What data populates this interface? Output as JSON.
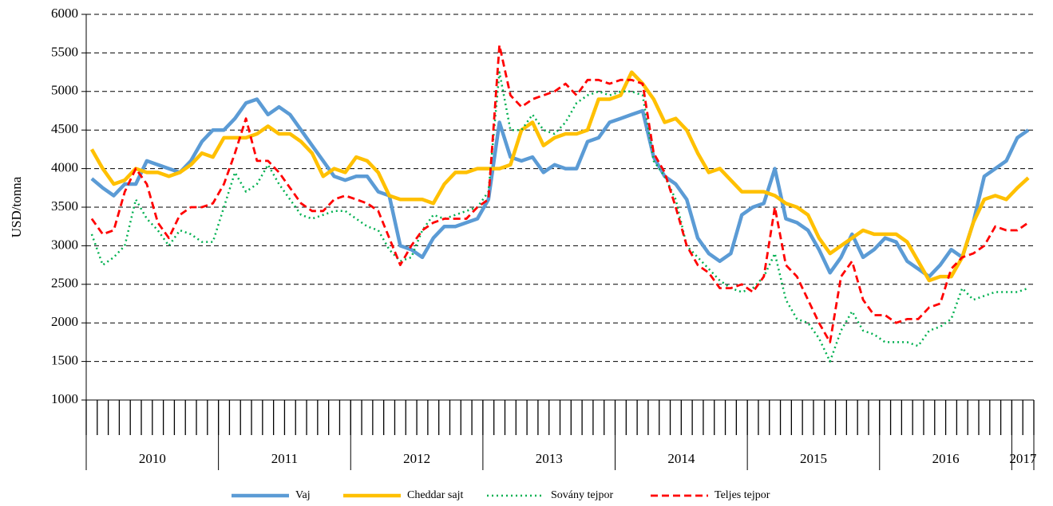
{
  "chart_data": {
    "type": "line",
    "y_label": "USD/tonna",
    "categories": [
      "2010",
      null,
      null,
      null,
      null,
      null,
      null,
      null,
      null,
      null,
      null,
      null,
      "2011",
      null,
      null,
      null,
      null,
      null,
      null,
      null,
      null,
      null,
      null,
      null,
      "2012",
      null,
      null,
      null,
      null,
      null,
      null,
      null,
      null,
      null,
      null,
      null,
      "2013",
      null,
      null,
      null,
      null,
      null,
      null,
      null,
      null,
      null,
      null,
      null,
      "2014",
      null,
      null,
      null,
      null,
      null,
      null,
      null,
      null,
      null,
      null,
      null,
      "2015",
      null,
      null,
      null,
      null,
      null,
      null,
      null,
      null,
      null,
      null,
      null,
      "2016",
      null,
      null,
      null,
      null,
      null,
      null,
      null,
      null,
      null,
      null,
      null,
      "2017",
      null
    ],
    "ylim": [
      1000,
      6000
    ],
    "yticks": [
      1000,
      1500,
      2000,
      2500,
      3000,
      3500,
      4000,
      4500,
      5000,
      5500,
      6000
    ],
    "grid": true,
    "legend": "bottom",
    "series": [
      {
        "name": "Vaj",
        "color": "#5b9bd5",
        "style": "solid",
        "values": [
          3870,
          3750,
          3650,
          3800,
          3800,
          4100,
          4050,
          4000,
          3950,
          4100,
          4350,
          4500,
          4500,
          4650,
          4850,
          4900,
          4700,
          4800,
          4700,
          4500,
          4300,
          4100,
          3900,
          3850,
          3900,
          3900,
          3700,
          3650,
          3000,
          2950,
          2850,
          3100,
          3250,
          3250,
          3300,
          3350,
          3600,
          4600,
          4150,
          4100,
          4150,
          3950,
          4050,
          4000,
          4000,
          4350,
          4400,
          4600,
          4650,
          4700,
          4750,
          4150,
          3900,
          3800,
          3600,
          3100,
          2900,
          2800,
          2900,
          3400,
          3500,
          3550,
          4000,
          3350,
          3300,
          3200,
          2950,
          2650,
          2850,
          3150,
          2850,
          2950,
          3100,
          3050,
          2800,
          2700,
          2600,
          2750,
          2950,
          2850,
          3300,
          3900,
          4000,
          4100,
          4400,
          4500
        ]
      },
      {
        "name": "Cheddar sajt",
        "color": "#ffc000",
        "style": "solid",
        "values": [
          4250,
          4000,
          3800,
          3850,
          4000,
          3950,
          3950,
          3900,
          3950,
          4050,
          4200,
          4150,
          4400,
          4400,
          4400,
          4450,
          4550,
          4450,
          4450,
          4350,
          4200,
          3900,
          4000,
          3950,
          4150,
          4100,
          3950,
          3650,
          3600,
          3600,
          3600,
          3550,
          3800,
          3950,
          3950,
          4000,
          4000,
          4000,
          4050,
          4500,
          4600,
          4300,
          4400,
          4450,
          4450,
          4500,
          4900,
          4900,
          4950,
          5250,
          5100,
          4900,
          4600,
          4650,
          4500,
          4200,
          3950,
          4000,
          3850,
          3700,
          3700,
          3700,
          3650,
          3550,
          3500,
          3400,
          3100,
          2900,
          3000,
          3100,
          3200,
          3150,
          3150,
          3150,
          3050,
          2800,
          2550,
          2600,
          2600,
          2850,
          3300,
          3600,
          3650,
          3600,
          3750,
          3880
        ]
      },
      {
        "name": "Sovány tejpor",
        "color": "#00b050",
        "style": "dotted",
        "values": [
          3150,
          2750,
          2850,
          3000,
          3600,
          3350,
          3200,
          3000,
          3200,
          3150,
          3050,
          3050,
          3500,
          3950,
          3700,
          3800,
          4050,
          3800,
          3600,
          3400,
          3350,
          3400,
          3450,
          3450,
          3350,
          3250,
          3200,
          2950,
          2800,
          2850,
          3200,
          3400,
          3350,
          3400,
          3450,
          3500,
          3700,
          5250,
          4500,
          4500,
          4700,
          4500,
          4450,
          4600,
          4850,
          4950,
          5000,
          4950,
          5000,
          5000,
          4950,
          4100,
          3900,
          3600,
          3000,
          2850,
          2700,
          2550,
          2450,
          2400,
          2450,
          2600,
          2900,
          2300,
          2050,
          2000,
          1800,
          1500,
          1900,
          2150,
          1900,
          1850,
          1750,
          1750,
          1750,
          1700,
          1900,
          1950,
          2050,
          2450,
          2300,
          2350,
          2400,
          2400,
          2400,
          2450
        ]
      },
      {
        "name": "Teljes tejpor",
        "color": "#ff0000",
        "style": "dashed",
        "values": [
          3350,
          3150,
          3200,
          3700,
          4000,
          3800,
          3300,
          3100,
          3400,
          3500,
          3500,
          3550,
          3800,
          4200,
          4650,
          4100,
          4100,
          3950,
          3750,
          3550,
          3450,
          3450,
          3600,
          3650,
          3600,
          3550,
          3450,
          3100,
          2750,
          3000,
          3200,
          3300,
          3350,
          3350,
          3350,
          3500,
          3600,
          5600,
          4950,
          4800,
          4900,
          4950,
          5000,
          5100,
          4950,
          5150,
          5150,
          5100,
          5150,
          5150,
          5100,
          4200,
          3950,
          3500,
          3000,
          2750,
          2650,
          2450,
          2450,
          2500,
          2400,
          2600,
          3500,
          2750,
          2600,
          2300,
          2000,
          1750,
          2600,
          2800,
          2300,
          2100,
          2100,
          2000,
          2050,
          2050,
          2200,
          2250,
          2700,
          2850,
          2900,
          3000,
          3250,
          3200,
          3200,
          3300
        ]
      }
    ]
  }
}
